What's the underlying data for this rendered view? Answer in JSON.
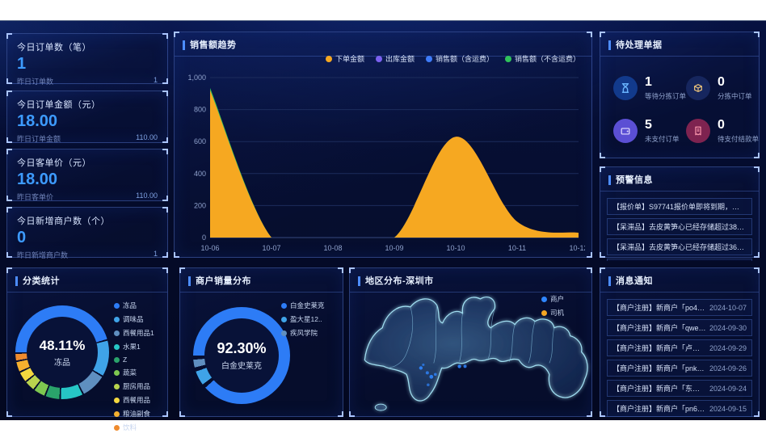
{
  "cards": [
    {
      "title": "今日订单数（笔）",
      "value": "1",
      "prev_label": "昨日订单数",
      "prev_value": "1"
    },
    {
      "title": "今日订单金额（元）",
      "value": "18.00",
      "prev_label": "昨日订单金额",
      "prev_value": "110.00"
    },
    {
      "title": "今日客单价（元）",
      "value": "18.00",
      "prev_label": "昨日客单价",
      "prev_value": "110.00"
    },
    {
      "title": "今日新增商户数（个）",
      "value": "0",
      "prev_label": "昨日新增商户数",
      "prev_value": "1"
    }
  ],
  "trend": {
    "title": "销售额趋势"
  },
  "pending": {
    "title": "待处理单据",
    "items": [
      {
        "value": "1",
        "label": "等待分拣订单"
      },
      {
        "value": "0",
        "label": "分拣中订单"
      },
      {
        "value": "5",
        "label": "未支付订单"
      },
      {
        "value": "0",
        "label": "待支付结款单"
      }
    ]
  },
  "alerts": {
    "title": "预警信息",
    "items": [
      "【报价单】S97741报价单即将到期，请及时更新报价！",
      "【呆滞品】去皮黄笋心已经存储超过388天，请留意！（...",
      "【呆滞品】去皮黄笋心已经存储超过367天，请留意！（...",
      "【呆滞品】去皮黄笋心已经存储超过287天，请留意！（..."
    ]
  },
  "category": {
    "title": "分类统计",
    "center_value": "48.11%",
    "center_label": "冻品"
  },
  "merchants": {
    "title": "商户销量分布",
    "center_value": "92.30%",
    "center_label": "白金史莱克"
  },
  "map": {
    "title": "地区分布-深圳市",
    "legend": [
      {
        "label": "商户",
        "color": "#2f86ff"
      },
      {
        "label": "司机",
        "color": "#f5a623"
      }
    ]
  },
  "messages": {
    "title": "消息通知",
    "items": [
      {
        "text": "【商户注册】新商户「po402f8v3v70pr238k...",
        "date": "2024-10-07"
      },
      {
        "text": "【商户注册】新商户「qwer12332100」注册...",
        "date": "2024-09-30"
      },
      {
        "text": "【商户注册】新商户「卢欢」注册成功，请...",
        "date": "2024-09-29"
      },
      {
        "text": "【商户注册】新商户「pnkt1t5qnlq2h11o2p...",
        "date": "2024-09-26"
      },
      {
        "text": "【商户注册】新商户「东莞点知」注册成功...",
        "date": "2024-09-24"
      },
      {
        "text": "【商户注册】新商户「pn6s10s064c7b7ul3lL...",
        "date": "2024-09-15"
      },
      {
        "text": "【商户注册】新商户「pn41i0kd5a5mvkpepvj...",
        "date": "2024-09-13"
      }
    ]
  },
  "chart_data": [
    {
      "type": "area",
      "title": "销售额趋势",
      "x": [
        "10-06",
        "10-07",
        "10-08",
        "10-09",
        "10-10",
        "10-11",
        "10-12"
      ],
      "series": [
        {
          "name": "下单金额",
          "color": "#F6A821",
          "values": [
            920,
            0,
            0,
            0,
            630,
            100,
            30
          ]
        },
        {
          "name": "出库金额",
          "color": "#7B61F0",
          "values": [
            0,
            0,
            0,
            0,
            0,
            0,
            0
          ]
        },
        {
          "name": "销售额（含运费）",
          "color": "#3E7BFA",
          "values": [
            0,
            0,
            0,
            0,
            0,
            0,
            0
          ]
        },
        {
          "name": "销售额（不含运费）",
          "color": "#2FC25B",
          "values": [
            935,
            0,
            0,
            0,
            625,
            95,
            25
          ]
        }
      ],
      "ylim": [
        0,
        1000
      ],
      "yticks": [
        "0",
        "200",
        "400",
        "600",
        "800",
        "1,000"
      ],
      "grid": true,
      "legend_position": "top-right"
    },
    {
      "type": "pie",
      "title": "分类统计",
      "center": {
        "value": "48.11%",
        "label": "冻品"
      },
      "segments": [
        {
          "label": "冻品",
          "value": 48.11,
          "color": "#2d7cf6"
        },
        {
          "label": "调味品",
          "value": 13,
          "color": "#3fa3e8"
        },
        {
          "label": "西餐用品1",
          "value": 9,
          "color": "#5f8fc0"
        },
        {
          "label": "水果1",
          "value": 8,
          "color": "#26c6c6"
        },
        {
          "label": "Z",
          "value": 5,
          "color": "#2aa36b"
        },
        {
          "label": "蔬菜",
          "value": 4,
          "color": "#7ec850"
        },
        {
          "label": "厨房用品",
          "value": 3.5,
          "color": "#b9d44e"
        },
        {
          "label": "西餐用品",
          "value": 3.5,
          "color": "#f4d83f"
        },
        {
          "label": "粮油副食",
          "value": 3.5,
          "color": "#f5b02f"
        },
        {
          "label": "饮料",
          "value": 2.39,
          "color": "#ef8b2e"
        }
      ]
    },
    {
      "type": "pie",
      "title": "商户销量分布",
      "center": {
        "value": "92.30%",
        "label": "白金史莱克"
      },
      "segments": [
        {
          "label": "白金史莱克",
          "value": 92.3,
          "color": "#2d7cf6"
        },
        {
          "label": "盈大星12..",
          "value": 5,
          "color": "#3fa3e8"
        },
        {
          "label": "疾风学院",
          "value": 2.7,
          "color": "#5f8fc0"
        }
      ]
    }
  ]
}
